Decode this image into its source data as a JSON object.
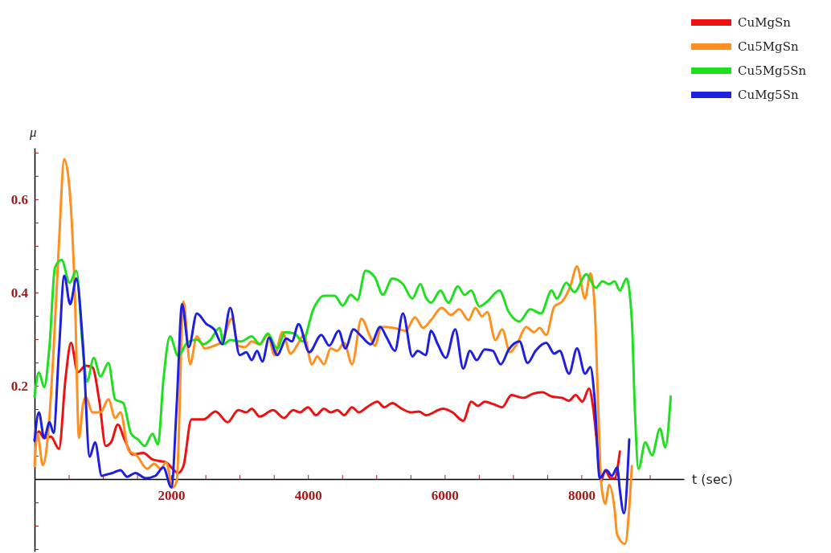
{
  "chart_data": {
    "type": "line",
    "xlabel": "t (sec)",
    "ylabel": "μ",
    "xlim": [
      0,
      9500
    ],
    "ylim": [
      -0.155,
      0.71
    ],
    "xticks": [
      {
        "value": 500,
        "label": null
      },
      {
        "value": 1000,
        "label": null
      },
      {
        "value": 1500,
        "label": null
      },
      2000,
      {
        "value": 2500,
        "label": null
      },
      {
        "value": 3000,
        "label": null
      },
      {
        "value": 3500,
        "label": null
      },
      4000,
      {
        "value": 4500,
        "label": null
      },
      {
        "value": 5000,
        "label": null
      },
      {
        "value": 5500,
        "label": null
      },
      6000,
      {
        "value": 6500,
        "label": null
      },
      {
        "value": 7000,
        "label": null
      },
      {
        "value": 7500,
        "label": null
      },
      8000,
      {
        "value": 8500,
        "label": null
      },
      {
        "value": 9000,
        "label": null
      }
    ],
    "yticks": [
      {
        "value": -0.15,
        "label": null
      },
      {
        "value": -0.1,
        "label": null
      },
      {
        "value": -0.05,
        "label": null
      },
      {
        "value": 0.05,
        "label": null
      },
      {
        "value": 0.1,
        "label": null
      },
      {
        "value": 0.15,
        "label": null
      },
      0.2,
      {
        "value": 0.25,
        "label": null
      },
      {
        "value": 0.3,
        "label": null
      },
      {
        "value": 0.35,
        "label": null
      },
      0.4,
      {
        "value": 0.45,
        "label": null
      },
      {
        "value": 0.5,
        "label": null
      },
      {
        "value": 0.55,
        "label": null
      },
      0.6,
      {
        "value": 0.65,
        "label": null
      },
      {
        "value": 0.7,
        "label": null
      }
    ],
    "grid": false,
    "legend": "top right",
    "line_style": "solid",
    "marker": "none",
    "series": [
      {
        "name": "CuMgSn",
        "color": "#ee1111",
        "x": [
          0,
          63,
          141,
          239,
          357,
          454,
          533,
          631,
          748,
          846,
          944,
          1042,
          1120,
          1218,
          1316,
          1434,
          1590,
          1727,
          1923,
          2021,
          2100,
          2178,
          2295,
          2413,
          2472,
          2648,
          2824,
          2981,
          3098,
          3177,
          3294,
          3490,
          3647,
          3784,
          3882,
          4000,
          4117,
          4234,
          4332,
          4430,
          4528,
          4645,
          4743,
          4861,
          5017,
          5115,
          5233,
          5370,
          5507,
          5625,
          5723,
          5977,
          6115,
          6271,
          6389,
          6487,
          6585,
          6722,
          6840,
          6977,
          7153,
          7290,
          7427,
          7564,
          7721,
          7818,
          7917,
          8015,
          8112,
          8171,
          8230,
          8289,
          8348,
          8426,
          8485,
          8563
        ],
        "values": [
          0.085,
          0.102,
          0.088,
          0.091,
          0.065,
          0.217,
          0.292,
          0.229,
          0.243,
          0.24,
          0.171,
          0.071,
          0.079,
          0.117,
          0.085,
          0.053,
          0.056,
          0.042,
          0.036,
          0.022,
          0.013,
          0.028,
          0.128,
          0.128,
          0.128,
          0.145,
          0.122,
          0.148,
          0.143,
          0.151,
          0.134,
          0.148,
          0.131,
          0.148,
          0.143,
          0.154,
          0.137,
          0.151,
          0.143,
          0.148,
          0.137,
          0.154,
          0.143,
          0.154,
          0.166,
          0.154,
          0.163,
          0.151,
          0.143,
          0.145,
          0.137,
          0.151,
          0.143,
          0.125,
          0.166,
          0.157,
          0.166,
          0.16,
          0.154,
          0.18,
          0.174,
          0.183,
          0.186,
          0.177,
          0.174,
          0.168,
          0.18,
          0.166,
          0.194,
          0.154,
          0.074,
          -0.004,
          0.019,
          0.002,
          0.002,
          0.059
        ]
      },
      {
        "name": "Cu5MgSn",
        "color": "#ff8f1f",
        "x": [
          0,
          43,
          120,
          200,
          278,
          357,
          435,
          513,
          591,
          650,
          709,
          748,
          846,
          964,
          1081,
          1179,
          1257,
          1375,
          1492,
          1649,
          1747,
          1845,
          1923,
          2021,
          2080,
          2178,
          2276,
          2374,
          2491,
          2628,
          2746,
          2883,
          2981,
          3079,
          3177,
          3294,
          3412,
          3510,
          3627,
          3745,
          3862,
          3940,
          4058,
          4136,
          4234,
          4332,
          4430,
          4528,
          4645,
          4782,
          4900,
          4978,
          5076,
          5252,
          5429,
          5566,
          5684,
          5801,
          5957,
          6095,
          6213,
          6350,
          6448,
          6546,
          6624,
          6742,
          6840,
          6957,
          7075,
          7192,
          7310,
          7388,
          7486,
          7603,
          7721,
          7838,
          7936,
          8054,
          8132,
          8191,
          8250,
          8289,
          8348,
          8407,
          8485,
          8523,
          8640,
          8699,
          8738
        ],
        "values": [
          0.028,
          0.097,
          0.03,
          0.1,
          0.275,
          0.505,
          0.686,
          0.62,
          0.39,
          0.088,
          0.16,
          0.177,
          0.143,
          0.143,
          0.171,
          0.131,
          0.143,
          0.062,
          0.051,
          0.022,
          0.033,
          0.022,
          0.036,
          -0.018,
          -0.004,
          0.381,
          0.246,
          0.306,
          0.28,
          0.286,
          0.295,
          0.344,
          0.286,
          0.283,
          0.295,
          0.289,
          0.309,
          0.266,
          0.315,
          0.269,
          0.292,
          0.309,
          0.246,
          0.263,
          0.246,
          0.28,
          0.275,
          0.292,
          0.246,
          0.344,
          0.309,
          0.286,
          0.326,
          0.324,
          0.318,
          0.347,
          0.324,
          0.341,
          0.367,
          0.352,
          0.364,
          0.341,
          0.367,
          0.349,
          0.358,
          0.298,
          0.321,
          0.272,
          0.295,
          0.326,
          0.315,
          0.324,
          0.309,
          0.37,
          0.381,
          0.413,
          0.456,
          0.387,
          0.441,
          0.378,
          0.137,
          -0.007,
          -0.053,
          -0.013,
          -0.064,
          -0.119,
          -0.139,
          -0.064,
          0.028
        ]
      },
      {
        "name": "Cu5Mg5Sn",
        "color": "#1fe01f",
        "x": [
          0,
          63,
          141,
          219,
          298,
          396,
          513,
          611,
          709,
          768,
          866,
          964,
          1081,
          1179,
          1297,
          1414,
          1512,
          1610,
          1727,
          1806,
          1884,
          1982,
          2100,
          2237,
          2374,
          2472,
          2570,
          2707,
          2765,
          2863,
          3020,
          3177,
          3294,
          3412,
          3549,
          3666,
          3804,
          3921,
          4078,
          4234,
          4391,
          4508,
          4626,
          4724,
          4841,
          4978,
          5096,
          5233,
          5389,
          5527,
          5644,
          5723,
          5801,
          5938,
          6056,
          6193,
          6291,
          6389,
          6507,
          6624,
          6800,
          6938,
          7095,
          7251,
          7408,
          7564,
          7642,
          7779,
          7897,
          8073,
          8210,
          8308,
          8407,
          8485,
          8563,
          8661,
          8739,
          8778,
          8837,
          8935,
          9033,
          9150,
          9228,
          9307
        ],
        "values": [
          0.177,
          0.229,
          0.197,
          0.286,
          0.453,
          0.47,
          0.421,
          0.447,
          0.275,
          0.209,
          0.26,
          0.22,
          0.249,
          0.171,
          0.163,
          0.097,
          0.085,
          0.071,
          0.097,
          0.074,
          0.211,
          0.306,
          0.264,
          0.293,
          0.299,
          0.289,
          0.298,
          0.324,
          0.289,
          0.298,
          0.295,
          0.306,
          0.289,
          0.312,
          0.28,
          0.315,
          0.312,
          0.295,
          0.364,
          0.393,
          0.393,
          0.372,
          0.395,
          0.384,
          0.447,
          0.433,
          0.395,
          0.43,
          0.418,
          0.387,
          0.418,
          0.39,
          0.378,
          0.404,
          0.378,
          0.413,
          0.395,
          0.404,
          0.37,
          0.381,
          0.404,
          0.358,
          0.338,
          0.364,
          0.355,
          0.404,
          0.387,
          0.421,
          0.401,
          0.439,
          0.41,
          0.424,
          0.418,
          0.424,
          0.404,
          0.43,
          0.338,
          0.166,
          0.022,
          0.079,
          0.051,
          0.108,
          0.068,
          0.177
        ]
      },
      {
        "name": "CuMg5Sn",
        "color": "#1f1fdf",
        "x": [
          0,
          63,
          141,
          219,
          278,
          357,
          435,
          521,
          611,
          709,
          807,
          885,
          983,
          1061,
          1140,
          1257,
          1355,
          1473,
          1629,
          1767,
          1884,
          2002,
          2080,
          2158,
          2256,
          2374,
          2511,
          2628,
          2746,
          2863,
          3001,
          3098,
          3177,
          3255,
          3333,
          3431,
          3549,
          3686,
          3764,
          3862,
          4019,
          4195,
          4312,
          4449,
          4547,
          4665,
          4782,
          4920,
          5056,
          5154,
          5272,
          5389,
          5527,
          5605,
          5723,
          5801,
          5899,
          6017,
          6154,
          6271,
          6370,
          6468,
          6585,
          6703,
          6820,
          6938,
          7095,
          7212,
          7330,
          7486,
          7603,
          7682,
          7819,
          7936,
          8054,
          8132,
          8191,
          8269,
          8367,
          8446,
          8524,
          8563,
          8622,
          8700
        ],
        "values": [
          0.082,
          0.143,
          0.088,
          0.122,
          0.099,
          0.275,
          0.436,
          0.375,
          0.43,
          0.286,
          0.048,
          0.079,
          0.007,
          0.01,
          0.013,
          0.019,
          0.005,
          0.013,
          0.002,
          0.007,
          0.025,
          -0.018,
          0.16,
          0.375,
          0.283,
          0.355,
          0.333,
          0.321,
          0.289,
          0.367,
          0.266,
          0.272,
          0.255,
          0.275,
          0.252,
          0.303,
          0.266,
          0.301,
          0.295,
          0.332,
          0.272,
          0.309,
          0.286,
          0.318,
          0.28,
          0.321,
          0.306,
          0.289,
          0.326,
          0.303,
          0.275,
          0.355,
          0.263,
          0.275,
          0.266,
          0.318,
          0.289,
          0.26,
          0.321,
          0.237,
          0.275,
          0.255,
          0.278,
          0.275,
          0.246,
          0.278,
          0.295,
          0.249,
          0.275,
          0.292,
          0.269,
          0.275,
          0.226,
          0.28,
          0.226,
          0.24,
          0.177,
          0.002,
          0.019,
          0.007,
          0.025,
          -0.024,
          -0.073,
          0.085
        ]
      }
    ]
  }
}
